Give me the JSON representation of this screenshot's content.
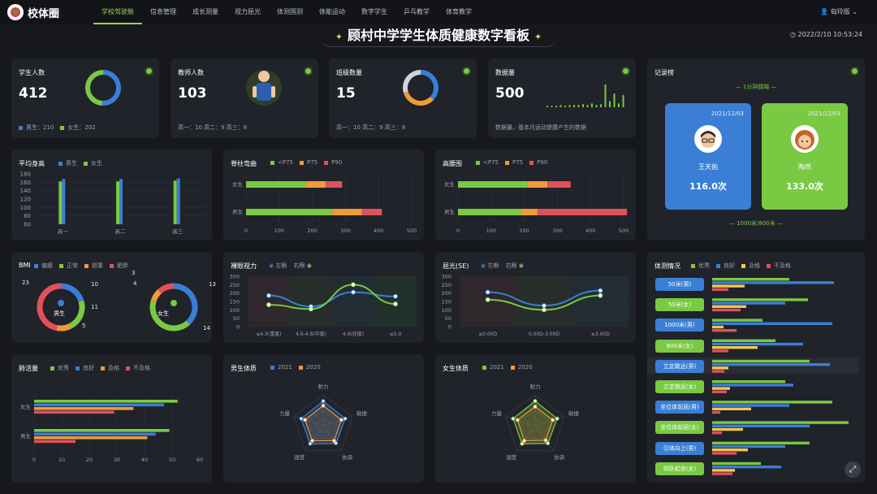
{
  "brand": "校体圈",
  "nav": [
    "学校驾驶舱",
    "信息管理",
    "成长测量",
    "视力屈光",
    "体测国测",
    "体能运动",
    "数字学生",
    "乒乓教学",
    "体育教学"
  ],
  "user": "匈玲版 ⌄",
  "title": "顾村中学学生体质健康数字看板",
  "clock": "2022/2/10 10:53:24",
  "stats": {
    "students": {
      "label": "学生人数",
      "value": "412",
      "foot_male": "男生：210",
      "foot_female": "女生：202"
    },
    "teachers": {
      "label": "教师人数",
      "value": "103",
      "foot": "高一：10    高二：9    高三：8"
    },
    "classes": {
      "label": "班级数量",
      "value": "15",
      "foot": "高一：10    高二：9    高三：8"
    },
    "data": {
      "label": "数据量",
      "value": "500",
      "foot": "数据量，基本月运动健康产生的数据"
    }
  },
  "colors": {
    "green": "#7ac943",
    "blue": "#3a7fd5",
    "orange": "#f09b3a",
    "red": "#e0515a",
    "yellow": "#f4c64a"
  },
  "record": {
    "title": "记录榜",
    "top_label": "1分钟跳绳",
    "bottom_label": "1000米/800米",
    "cards": [
      {
        "date": "2021/12/03",
        "name": "王天佑",
        "score": "116.0次"
      },
      {
        "date": "2021/12/03",
        "name": "陶然",
        "score": "133.0次"
      }
    ]
  },
  "height": {
    "title": "平均身高",
    "legend": [
      "男生",
      "女生"
    ]
  },
  "spine": {
    "title": "脊柱弯曲",
    "legend": [
      "<P75",
      "P75",
      "P90"
    ]
  },
  "waist": {
    "title": "高腰围",
    "legend": [
      "<P75",
      "P75",
      "P90"
    ]
  },
  "bmi": {
    "title": "BMI",
    "legend": [
      "偏瘦",
      "正常",
      "超重",
      "肥胖"
    ],
    "male_label": "男生",
    "female_label": "女生"
  },
  "vision": {
    "title": "裸眼视力",
    "legend": [
      "左眼",
      "右眼"
    ]
  },
  "refraction": {
    "title": "屈光(SE)",
    "legend": [
      "左眼",
      "右眼"
    ]
  },
  "fitness": {
    "title": "体测情况",
    "legend": [
      "优秀",
      "良好",
      "及格",
      "不及格"
    ],
    "items": [
      "50米(男)",
      "50米(女)",
      "1000米(男)",
      "800米(女)",
      "立定跳远(男)",
      "立定跳远(女)",
      "坐位体前屈(男)",
      "坐位体前屈(女)",
      "引体向上(男)",
      "仰卧起坐(女)"
    ]
  },
  "lung": {
    "title": "肺活量",
    "legend": [
      "优秀",
      "良好",
      "及格",
      "不及格"
    ]
  },
  "male_fit": {
    "title": "男生体质",
    "legend": [
      "2021",
      "2020"
    ]
  },
  "female_fit": {
    "title": "女生体质",
    "legend": [
      "2021",
      "2020"
    ]
  },
  "chart_data": [
    {
      "id": "students-donut",
      "type": "pie",
      "categories": [
        "男生",
        "女生"
      ],
      "values": [
        210,
        202
      ]
    },
    {
      "id": "classes-donut",
      "type": "pie",
      "categories": [
        "高一",
        "高二",
        "高三"
      ],
      "values": [
        10,
        9,
        8
      ]
    },
    {
      "id": "data-spark",
      "type": "bar",
      "values": [
        2,
        2,
        2,
        3,
        2,
        3,
        3,
        3,
        4,
        3,
        5,
        3,
        4,
        30,
        8,
        18,
        5,
        16
      ]
    },
    {
      "id": "avg-height",
      "type": "bar",
      "categories": [
        "高一",
        "高二",
        "高三"
      ],
      "ylim": [
        60,
        180
      ],
      "yticks": [
        60,
        80,
        100,
        120,
        140,
        160,
        180
      ],
      "series": [
        {
          "name": "男生",
          "values": [
            162,
            162,
            164
          ]
        },
        {
          "name": "女生",
          "values": [
            168,
            168,
            169
          ]
        }
      ]
    },
    {
      "id": "spine",
      "type": "bar",
      "categories": [
        "女生",
        "男生"
      ],
      "xlim": [
        0,
        500
      ],
      "xticks": [
        0,
        100,
        200,
        300,
        400,
        500
      ],
      "series": [
        {
          "name": "<P75",
          "values": [
            180,
            260
          ]
        },
        {
          "name": "P75",
          "values": [
            60,
            90
          ]
        },
        {
          "name": "P90",
          "values": [
            50,
            60
          ]
        }
      ]
    },
    {
      "id": "waist",
      "type": "bar",
      "categories": [
        "女生",
        "男生"
      ],
      "xlim": [
        0,
        500
      ],
      "xticks": [
        0,
        100,
        200,
        300,
        400,
        500
      ],
      "series": [
        {
          "name": "<P75",
          "values": [
            210,
            190
          ]
        },
        {
          "name": "P75",
          "values": [
            60,
            50
          ]
        },
        {
          "name": "P90",
          "values": [
            70,
            270
          ]
        }
      ]
    },
    {
      "id": "bmi-male",
      "type": "pie",
      "categories": [
        "偏瘦",
        "正常",
        "超重",
        "肥胖"
      ],
      "values": [
        10,
        11,
        5,
        23
      ]
    },
    {
      "id": "bmi-female",
      "type": "pie",
      "categories": [
        "偏瘦",
        "正常",
        "超重",
        "肥胖"
      ],
      "values": [
        13,
        14,
        3,
        4
      ]
    },
    {
      "id": "vision",
      "type": "line",
      "categories": [
        "≤4.5(重度)",
        "4.6-4.8(中度)",
        "4.9(轻度)",
        "≥5.0"
      ],
      "ylim": [
        0,
        300
      ],
      "yticks": [
        0,
        50,
        100,
        150,
        200,
        250,
        300
      ],
      "series": [
        {
          "name": "左眼",
          "values": [
            185,
            120,
            205,
            180
          ]
        },
        {
          "name": "右眼",
          "values": [
            130,
            105,
            250,
            135
          ]
        }
      ]
    },
    {
      "id": "refraction",
      "type": "line",
      "categories": [
        "≤0.00D",
        "0.00D-3.00D",
        "≥3.00D"
      ],
      "ylim": [
        0,
        300
      ],
      "yticks": [
        0,
        50,
        100,
        150,
        200,
        250,
        300
      ],
      "series": [
        {
          "name": "左眼",
          "values": [
            205,
            125,
            215
          ]
        },
        {
          "name": "右眼",
          "values": [
            160,
            100,
            185
          ]
        }
      ]
    },
    {
      "id": "fitness",
      "type": "bar",
      "categories": [
        "50米(男)",
        "50米(女)",
        "1000米(男)",
        "800米(女)",
        "立定跳远(男)",
        "立定跳远(女)",
        "坐位体前屈(男)",
        "坐位体前屈(女)",
        "引体向上(男)",
        "仰卧起坐(女)"
      ],
      "series": [
        {
          "name": "优秀",
          "values": [
            95,
            118,
            62,
            78,
            120,
            90,
            148,
            168,
            120,
            60
          ]
        },
        {
          "name": "良好",
          "values": [
            150,
            90,
            148,
            112,
            145,
            100,
            95,
            120,
            90,
            85
          ]
        },
        {
          "name": "及格",
          "values": [
            40,
            42,
            14,
            56,
            20,
            22,
            48,
            38,
            44,
            28
          ]
        },
        {
          "name": "不及格",
          "values": [
            20,
            35,
            30,
            20,
            15,
            18,
            10,
            12,
            30,
            25
          ]
        }
      ]
    },
    {
      "id": "lung",
      "type": "bar",
      "categories": [
        "女生",
        "男生"
      ],
      "xlim": [
        0,
        60
      ],
      "xticks": [
        0,
        10,
        20,
        30,
        40,
        50,
        60
      ],
      "series": [
        {
          "name": "优秀",
          "values": [
            52,
            49
          ]
        },
        {
          "name": "良好",
          "values": [
            47,
            44
          ]
        },
        {
          "name": "及格",
          "values": [
            36,
            41
          ]
        },
        {
          "name": "不及格",
          "values": [
            29,
            15
          ]
        }
      ]
    },
    {
      "id": "male-radar",
      "type": "radar",
      "categories": [
        "耐力",
        "敏捷",
        "协调",
        "速度",
        "力量"
      ],
      "series": [
        {
          "name": "2021",
          "values": [
            0.8,
            0.75,
            0.7,
            0.72,
            0.75
          ]
        },
        {
          "name": "2020",
          "values": [
            0.65,
            0.62,
            0.6,
            0.6,
            0.62
          ]
        }
      ]
    },
    {
      "id": "female-radar",
      "type": "radar",
      "categories": [
        "耐力",
        "敏捷",
        "协调",
        "速度",
        "力量"
      ],
      "series": [
        {
          "name": "2021",
          "values": [
            0.8,
            0.75,
            0.7,
            0.72,
            0.75
          ]
        },
        {
          "name": "2020",
          "values": [
            0.62,
            0.6,
            0.58,
            0.6,
            0.6
          ]
        }
      ]
    }
  ]
}
